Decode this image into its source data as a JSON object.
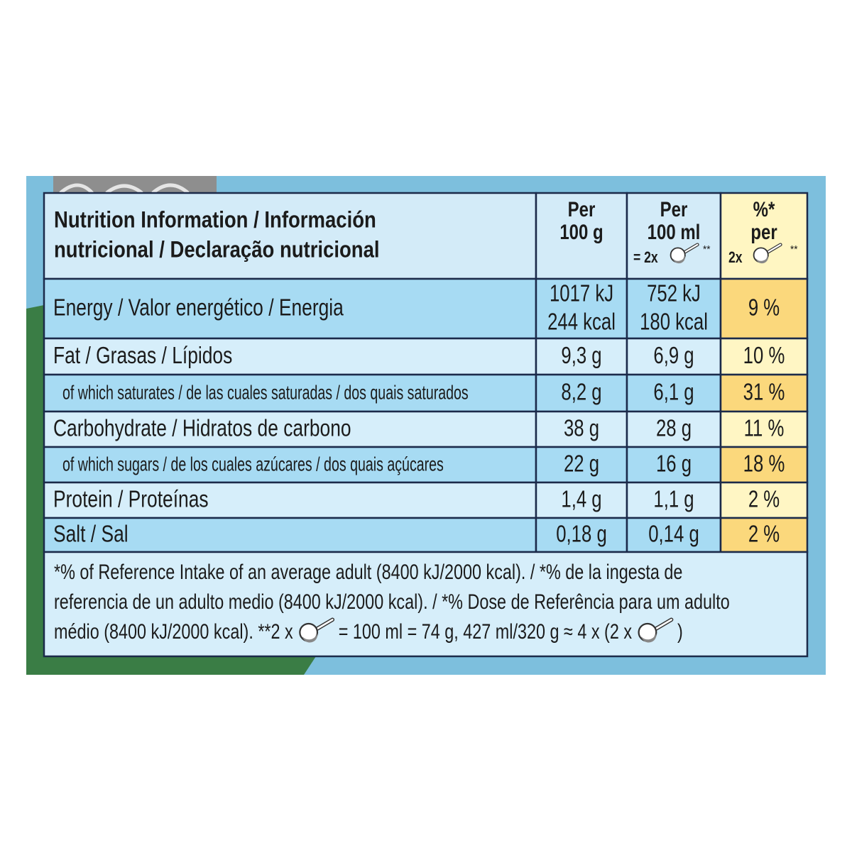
{
  "header": {
    "title_lines": [
      "Nutrition Information / Información",
      "nutricional / Declaração nutricional"
    ],
    "columns": [
      {
        "lines": [
          "Per",
          "100 g"
        ]
      },
      {
        "lines": [
          "Per",
          "100 ml"
        ],
        "serving": "= 2x",
        "mark": "**"
      },
      {
        "lines": [
          "%*",
          "per"
        ],
        "serving": "2x",
        "mark": "**"
      }
    ]
  },
  "rows": [
    {
      "label": "Energy / Valor energético / Energia",
      "values": [
        [
          "1017 kJ",
          "244 kcal"
        ],
        [
          "752 kJ",
          "180 kcal"
        ],
        [
          "9 %"
        ]
      ]
    },
    {
      "label": "Fat / Grasas / Lípidos",
      "values": [
        [
          "9,3 g"
        ],
        [
          "6,9 g"
        ],
        [
          "10 %"
        ]
      ]
    },
    {
      "label": "of which saturates / de las cuales saturadas / dos quais saturados",
      "sub": true,
      "values": [
        [
          "8,2 g"
        ],
        [
          "6,1 g"
        ],
        [
          "31 %"
        ]
      ]
    },
    {
      "label": "Carbohydrate / Hidratos de carbono",
      "values": [
        [
          "38 g"
        ],
        [
          "28 g"
        ],
        [
          "11 %"
        ]
      ]
    },
    {
      "label": "of which sugars / de los cuales azúcares / dos quais açúcares",
      "sub": true,
      "values": [
        [
          "22 g"
        ],
        [
          "16 g"
        ],
        [
          "18 %"
        ]
      ]
    },
    {
      "label": "Protein / Proteínas",
      "values": [
        [
          "1,4 g"
        ],
        [
          "1,1 g"
        ],
        [
          "2 %"
        ]
      ]
    },
    {
      "label": "Salt / Sal",
      "values": [
        [
          "0,18 g"
        ],
        [
          "0,14 g"
        ],
        [
          "2 %"
        ]
      ]
    }
  ],
  "footnote": {
    "lines": [
      "*% of Reference Intake of an average adult (8400 kJ/2000 kcal). / *% de la ingesta de",
      "referencia de un adulto medio (8400 kJ/2000 kcal). / *% Dose de Referência para um adulto"
    ],
    "last_line": [
      "médio (8400 kJ/2000 kcal).  **2 x",
      "= 100 ml = 74 g, 427 ml/320 g ≈ 4 x (2 x",
      ")"
    ]
  }
}
